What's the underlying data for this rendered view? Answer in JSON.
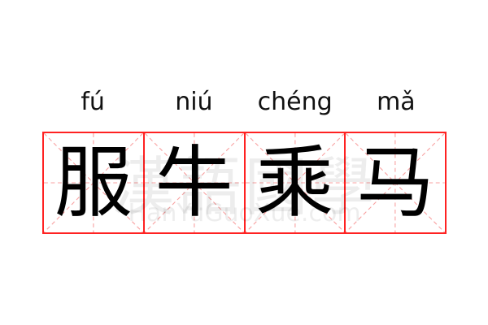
{
  "entries": [
    {
      "pinyin": "fú",
      "hanzi": "服"
    },
    {
      "pinyin": "niú",
      "hanzi": "牛"
    },
    {
      "pinyin": "chéng",
      "hanzi": "乘"
    },
    {
      "pinyin": "mǎ",
      "hanzi": "马"
    }
  ],
  "watermark": {
    "chinese": "漢語國學",
    "latin": "HanYuGuoXue.com"
  },
  "colors": {
    "grid_border": "#ff2222",
    "guide_lines": "#f8a0a0",
    "text": "#000000"
  }
}
